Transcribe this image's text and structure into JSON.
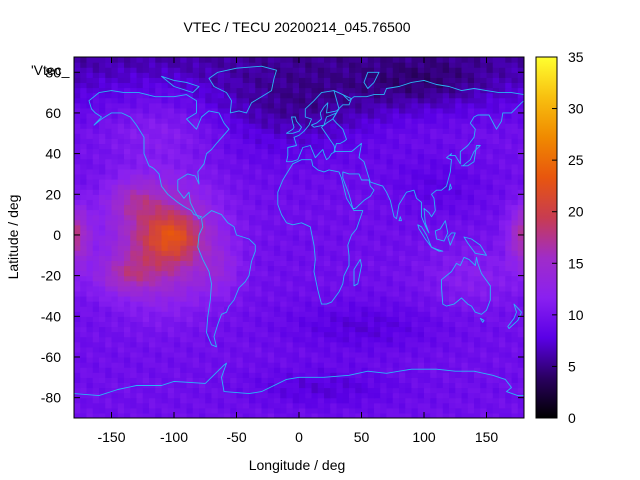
{
  "chart_data": {
    "type": "heatmap",
    "title": "VTEC / TECU 20200214_045.76500",
    "xlabel": "Longitude / deg",
    "ylabel": "Latitude / deg",
    "legend_label": "'Vtec_",
    "xlim": [
      -180,
      180
    ],
    "ylim": [
      -90,
      87.5
    ],
    "clim": [
      0,
      35
    ],
    "xticks": [
      -150,
      -100,
      -50,
      0,
      50,
      100,
      150
    ],
    "yticks": [
      -80,
      -60,
      -40,
      -20,
      0,
      20,
      40,
      60,
      80
    ],
    "colorbar_ticks": [
      0,
      5,
      10,
      15,
      20,
      25,
      30,
      35
    ],
    "colormap": [
      "#000000",
      "#2a0060",
      "#5a00e6",
      "#8a20f0",
      "#a02cc8",
      "#c83c50",
      "#e8560e",
      "#f08a00",
      "#f8c010",
      "#ffff30"
    ],
    "grid": false,
    "colorbar": "right"
  }
}
